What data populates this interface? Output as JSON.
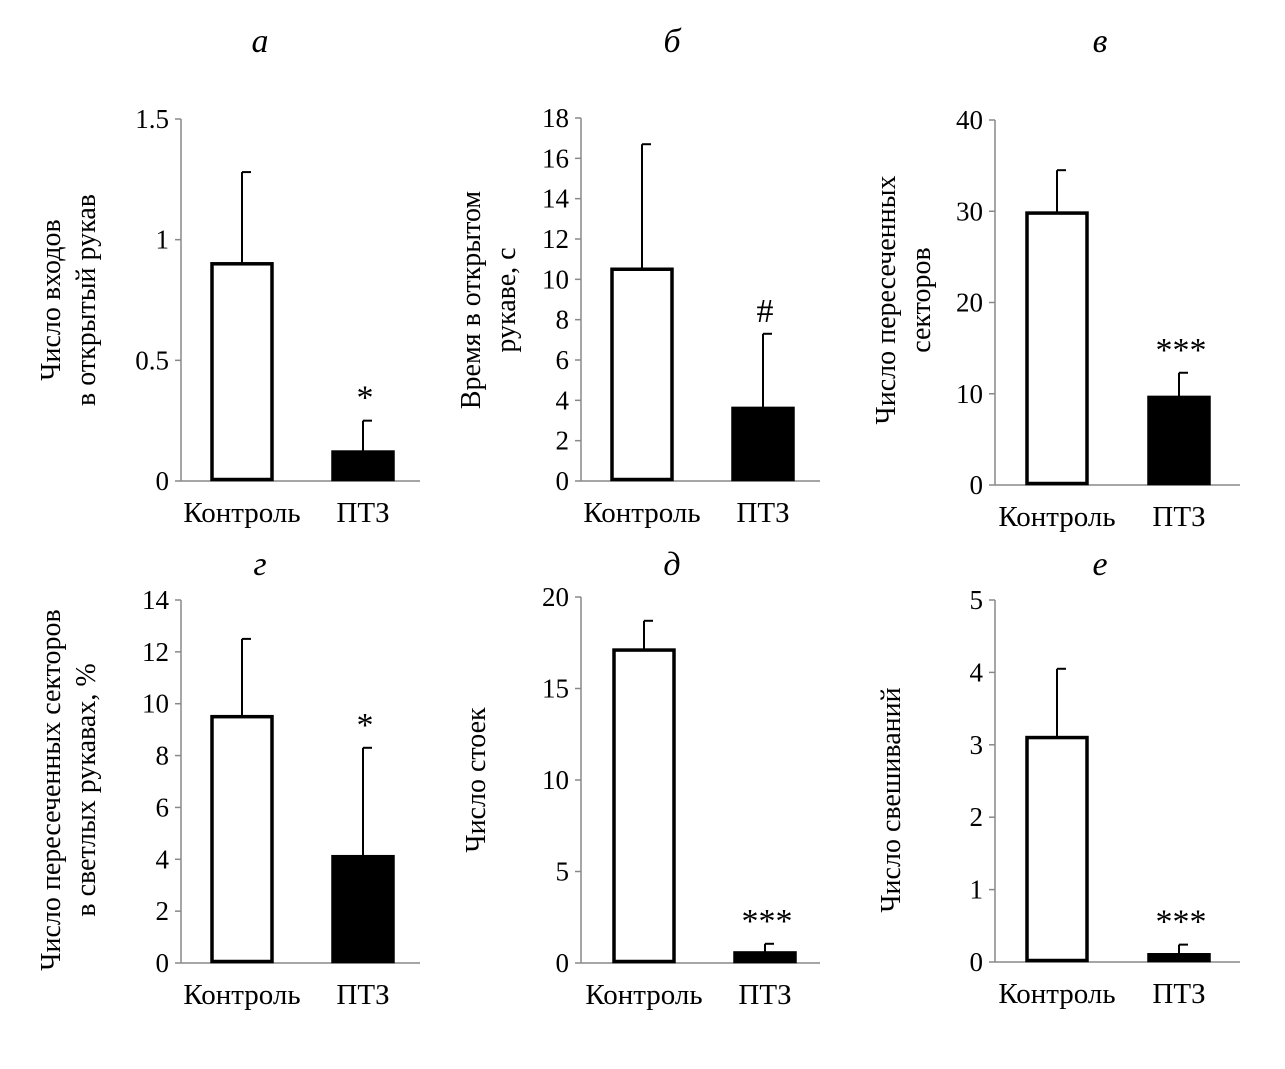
{
  "chart_data": [
    {
      "type": "bar",
      "title": "а",
      "ylabel": [
        "Число входов",
        "в открытый рукав"
      ],
      "categories": [
        "Контроль",
        "ПТЗ"
      ],
      "values": [
        0.9,
        0.12
      ],
      "errors": [
        1.28,
        0.25
      ],
      "ylim": [
        0,
        1.5
      ],
      "yticks": [
        "0",
        "0.5",
        "1",
        "1.5"
      ],
      "ytick_values": [
        0,
        0.5,
        1,
        1.5
      ],
      "significance": [
        "",
        "*"
      ],
      "fill": [
        "#ffffff",
        "#000000"
      ],
      "grid": false
    },
    {
      "type": "bar",
      "title": "б",
      "ylabel": [
        "Время в открытом",
        "рукаве, с"
      ],
      "categories": [
        "Контроль",
        "ПТЗ"
      ],
      "values": [
        10.5,
        3.6
      ],
      "errors": [
        16.7,
        7.3
      ],
      "ylim": [
        0,
        18
      ],
      "yticks": [
        "0",
        "2",
        "4",
        "6",
        "8",
        "10",
        "12",
        "14",
        "16",
        "18"
      ],
      "ytick_values": [
        0,
        2,
        4,
        6,
        8,
        10,
        12,
        14,
        16,
        18
      ],
      "significance": [
        "",
        "#"
      ],
      "fill": [
        "#ffffff",
        "#000000"
      ],
      "grid": false
    },
    {
      "type": "bar",
      "title": "в",
      "ylabel": [
        "Число пересеченных",
        "секторов"
      ],
      "categories": [
        "Контроль",
        "ПТЗ"
      ],
      "values": [
        29.8,
        9.6
      ],
      "errors": [
        34.5,
        12.3
      ],
      "ylim": [
        0,
        40
      ],
      "yticks": [
        "0",
        "10",
        "20",
        "30",
        "40"
      ],
      "ytick_values": [
        0,
        10,
        20,
        30,
        40
      ],
      "significance": [
        "",
        "***"
      ],
      "fill": [
        "#ffffff",
        "#000000"
      ],
      "grid": false
    },
    {
      "type": "bar",
      "title": "г",
      "ylabel": [
        "Число пересеченных секторов",
        "в светлых рукавах, %"
      ],
      "categories": [
        "Контроль",
        "ПТЗ"
      ],
      "values": [
        9.5,
        4.1
      ],
      "errors": [
        12.5,
        8.3
      ],
      "ylim": [
        0,
        14
      ],
      "yticks": [
        "0",
        "2",
        "4",
        "6",
        "8",
        "10",
        "12",
        "14"
      ],
      "ytick_values": [
        0,
        2,
        4,
        6,
        8,
        10,
        12,
        14
      ],
      "significance": [
        "",
        "*"
      ],
      "fill": [
        "#ffffff",
        "#000000"
      ],
      "grid": false
    },
    {
      "type": "bar",
      "title": "д",
      "ylabel": [
        "Число стоек"
      ],
      "categories": [
        "Контроль",
        "ПТЗ"
      ],
      "values": [
        17.1,
        0.55
      ],
      "errors": [
        18.7,
        1.05
      ],
      "ylim": [
        0,
        20
      ],
      "yticks": [
        "0",
        "5",
        "10",
        "15",
        "20"
      ],
      "ytick_values": [
        0,
        5,
        10,
        15,
        20
      ],
      "significance": [
        "",
        "***"
      ],
      "fill": [
        "#ffffff",
        "#000000"
      ],
      "grid": false
    },
    {
      "type": "bar",
      "title": "е",
      "ylabel": [
        "Число свешиваний"
      ],
      "categories": [
        "Контроль",
        "ПТЗ"
      ],
      "values": [
        3.1,
        0.1
      ],
      "errors": [
        4.05,
        0.24
      ],
      "ylim": [
        0,
        5
      ],
      "yticks": [
        "0",
        "1",
        "2",
        "3",
        "4",
        "5"
      ],
      "ytick_values": [
        0,
        1,
        2,
        3,
        4,
        5
      ],
      "significance": [
        "",
        "***"
      ],
      "fill": [
        "#ffffff",
        "#000000"
      ],
      "grid": false
    }
  ]
}
